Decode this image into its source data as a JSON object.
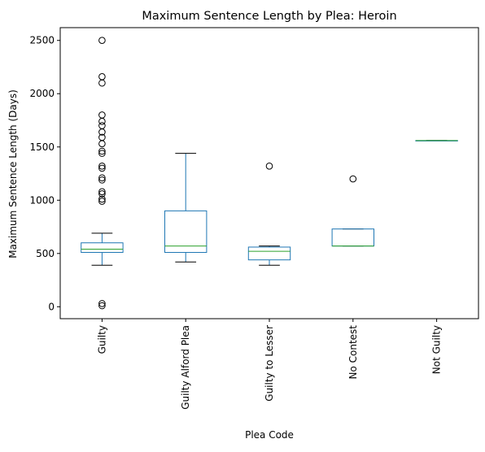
{
  "chart_data": {
    "type": "box",
    "title": "Maximum Sentence Length by Plea: Heroin",
    "xlabel": "Plea Code",
    "ylabel": "Maximum Sentence Length (Days)",
    "ylim": [
      -112,
      2620
    ],
    "yticks": [
      0,
      500,
      1000,
      1500,
      2000,
      2500
    ],
    "grid": false,
    "categories": [
      "Guilty",
      "Guilty Alford Plea",
      "Guilty to Lesser",
      "No Contest",
      "Not Guilty"
    ],
    "boxes": [
      {
        "whisker_low": 390,
        "q1": 510,
        "median": 540,
        "q3": 600,
        "whisker_high": 690,
        "outliers": [
          2500,
          2160,
          2100,
          1800,
          1740,
          1700,
          1640,
          1590,
          1530,
          1460,
          1440,
          1320,
          1300,
          1210,
          1190,
          1080,
          1060,
          1010,
          990,
          30,
          10
        ]
      },
      {
        "whisker_low": 420,
        "q1": 510,
        "median": 570,
        "q3": 900,
        "whisker_high": 1440,
        "outliers": []
      },
      {
        "whisker_low": 390,
        "q1": 440,
        "median": 520,
        "q3": 560,
        "whisker_high": 570,
        "outliers": [
          1320
        ]
      },
      {
        "whisker_low": 570,
        "q1": 570,
        "median": 570,
        "q3": 730,
        "whisker_high": 730,
        "outliers": [
          1200
        ]
      },
      {
        "whisker_low": 1560,
        "q1": 1560,
        "median": 1560,
        "q3": 1560,
        "whisker_high": 1560,
        "outliers": []
      }
    ],
    "colors": {
      "box": "#1f77b4",
      "median": "#2ca02c",
      "whisker": "#000000",
      "outlier": "#000000"
    }
  }
}
